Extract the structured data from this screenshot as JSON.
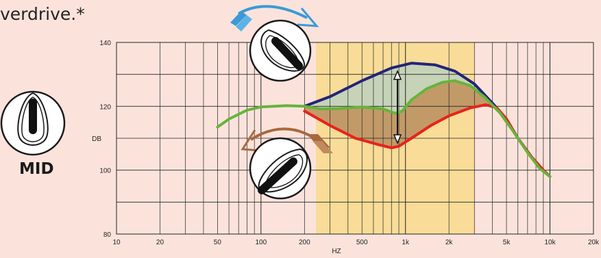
{
  "heading": "verdrive.*",
  "mid_knob": {
    "label": "MID"
  },
  "colors": {
    "background": "#fbe3dc",
    "mid_band": "#f8dc97",
    "boost_curve": "#23237a",
    "cut_curve": "#e8221b",
    "flat_curve": "#66b43a",
    "boost_fill": "#c6d3b8",
    "cut_fill": "#c29a68",
    "boost_arrow": "#3a9ad6",
    "cut_arrow": "#a8683e"
  },
  "chart_data": {
    "type": "line",
    "xscale": "log",
    "xlabel": "HZ",
    "ylabel": "DB",
    "xlim": [
      10,
      20000
    ],
    "ylim": [
      80,
      140
    ],
    "x_ticks": [
      {
        "value": 10,
        "label": "10"
      },
      {
        "value": 20,
        "label": "20"
      },
      {
        "value": 50,
        "label": "50"
      },
      {
        "value": 100,
        "label": "100"
      },
      {
        "value": 200,
        "label": "200"
      },
      {
        "value": 500,
        "label": "500"
      },
      {
        "value": 1000,
        "label": "1k"
      },
      {
        "value": 2000,
        "label": "2k"
      },
      {
        "value": 5000,
        "label": "5k"
      },
      {
        "value": 10000,
        "label": "10k"
      },
      {
        "value": 20000,
        "label": "20k"
      }
    ],
    "y_ticks": [
      {
        "value": 80,
        "label": "80"
      },
      {
        "value": 100,
        "label": "100"
      },
      {
        "value": 120,
        "label": "120"
      },
      {
        "value": 140,
        "label": "140"
      }
    ],
    "highlight_band": [
      240,
      3000
    ],
    "series": [
      {
        "key": "boost",
        "points": [
          [
            200,
            120
          ],
          [
            300,
            123
          ],
          [
            500,
            128
          ],
          [
            800,
            132
          ],
          [
            1100,
            133.5
          ],
          [
            1600,
            133
          ],
          [
            2200,
            131
          ],
          [
            3000,
            127
          ],
          [
            4000,
            121
          ],
          [
            5000,
            116
          ],
          [
            6000,
            110
          ],
          [
            7500,
            104
          ],
          [
            9000,
            100
          ],
          [
            10000,
            98
          ]
        ]
      },
      {
        "key": "cut",
        "points": [
          [
            200,
            118.5
          ],
          [
            300,
            114
          ],
          [
            450,
            110
          ],
          [
            650,
            108
          ],
          [
            800,
            107
          ],
          [
            900,
            107.5
          ],
          [
            1100,
            110
          ],
          [
            1500,
            114
          ],
          [
            2000,
            117
          ],
          [
            2800,
            119.5
          ],
          [
            3600,
            120.5
          ],
          [
            4300,
            119.5
          ],
          [
            5000,
            116
          ],
          [
            6000,
            110
          ],
          [
            7500,
            104
          ],
          [
            9000,
            100
          ],
          [
            10000,
            98
          ]
        ]
      },
      {
        "key": "flat",
        "points": [
          [
            50,
            113.5
          ],
          [
            60,
            116
          ],
          [
            80,
            118.8
          ],
          [
            100,
            119.8
          ],
          [
            150,
            120.2
          ],
          [
            200,
            120
          ],
          [
            260,
            119.2
          ],
          [
            350,
            119.3
          ],
          [
            500,
            119.8
          ],
          [
            700,
            119.2
          ],
          [
            850,
            117.8
          ],
          [
            950,
            118.5
          ],
          [
            1100,
            122
          ],
          [
            1400,
            125.5
          ],
          [
            1800,
            127.5
          ],
          [
            2200,
            128
          ],
          [
            2800,
            126.5
          ],
          [
            3500,
            123
          ],
          [
            4500,
            118
          ],
          [
            5500,
            112.5
          ],
          [
            7000,
            105.5
          ],
          [
            8500,
            100.5
          ],
          [
            10000,
            98
          ]
        ]
      }
    ]
  }
}
